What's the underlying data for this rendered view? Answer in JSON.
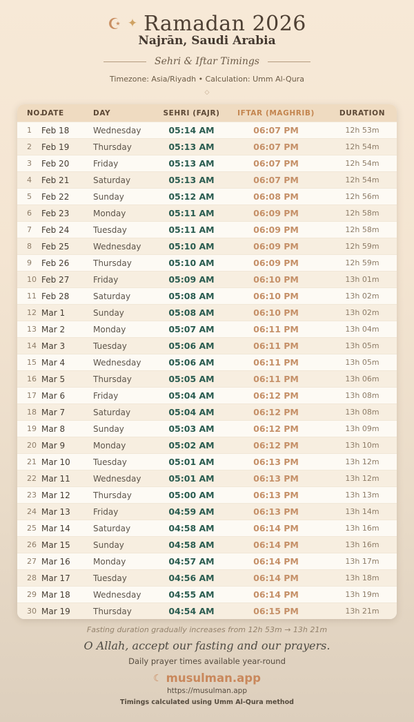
{
  "header": {
    "crescent_icon": "☪",
    "sparkle_icon": "✦",
    "title": "Ramadan 2026",
    "location": "Najrān, Saudi Arabia",
    "tagline": "Sehri & Iftar Timings",
    "meta": "Timezone: Asia/Riyadh • Calculation: Umm Al-Qura",
    "ornament": "◇"
  },
  "table": {
    "columns": [
      "NO.",
      "DATE",
      "DAY",
      "SEHRI (FAJR)",
      "IFTAR (MAGHRIB)",
      "DURATION"
    ],
    "rows": [
      [
        "1",
        "Feb 18",
        "Wednesday",
        "05:14 AM",
        "06:07 PM",
        "12h 53m"
      ],
      [
        "2",
        "Feb 19",
        "Thursday",
        "05:13 AM",
        "06:07 PM",
        "12h 54m"
      ],
      [
        "3",
        "Feb 20",
        "Friday",
        "05:13 AM",
        "06:07 PM",
        "12h 54m"
      ],
      [
        "4",
        "Feb 21",
        "Saturday",
        "05:13 AM",
        "06:07 PM",
        "12h 54m"
      ],
      [
        "5",
        "Feb 22",
        "Sunday",
        "05:12 AM",
        "06:08 PM",
        "12h 56m"
      ],
      [
        "6",
        "Feb 23",
        "Monday",
        "05:11 AM",
        "06:09 PM",
        "12h 58m"
      ],
      [
        "7",
        "Feb 24",
        "Tuesday",
        "05:11 AM",
        "06:09 PM",
        "12h 58m"
      ],
      [
        "8",
        "Feb 25",
        "Wednesday",
        "05:10 AM",
        "06:09 PM",
        "12h 59m"
      ],
      [
        "9",
        "Feb 26",
        "Thursday",
        "05:10 AM",
        "06:09 PM",
        "12h 59m"
      ],
      [
        "10",
        "Feb 27",
        "Friday",
        "05:09 AM",
        "06:10 PM",
        "13h 01m"
      ],
      [
        "11",
        "Feb 28",
        "Saturday",
        "05:08 AM",
        "06:10 PM",
        "13h 02m"
      ],
      [
        "12",
        "Mar 1",
        "Sunday",
        "05:08 AM",
        "06:10 PM",
        "13h 02m"
      ],
      [
        "13",
        "Mar 2",
        "Monday",
        "05:07 AM",
        "06:11 PM",
        "13h 04m"
      ],
      [
        "14",
        "Mar 3",
        "Tuesday",
        "05:06 AM",
        "06:11 PM",
        "13h 05m"
      ],
      [
        "15",
        "Mar 4",
        "Wednesday",
        "05:06 AM",
        "06:11 PM",
        "13h 05m"
      ],
      [
        "16",
        "Mar 5",
        "Thursday",
        "05:05 AM",
        "06:11 PM",
        "13h 06m"
      ],
      [
        "17",
        "Mar 6",
        "Friday",
        "05:04 AM",
        "06:12 PM",
        "13h 08m"
      ],
      [
        "18",
        "Mar 7",
        "Saturday",
        "05:04 AM",
        "06:12 PM",
        "13h 08m"
      ],
      [
        "19",
        "Mar 8",
        "Sunday",
        "05:03 AM",
        "06:12 PM",
        "13h 09m"
      ],
      [
        "20",
        "Mar 9",
        "Monday",
        "05:02 AM",
        "06:12 PM",
        "13h 10m"
      ],
      [
        "21",
        "Mar 10",
        "Tuesday",
        "05:01 AM",
        "06:13 PM",
        "13h 12m"
      ],
      [
        "22",
        "Mar 11",
        "Wednesday",
        "05:01 AM",
        "06:13 PM",
        "13h 12m"
      ],
      [
        "23",
        "Mar 12",
        "Thursday",
        "05:00 AM",
        "06:13 PM",
        "13h 13m"
      ],
      [
        "24",
        "Mar 13",
        "Friday",
        "04:59 AM",
        "06:13 PM",
        "13h 14m"
      ],
      [
        "25",
        "Mar 14",
        "Saturday",
        "04:58 AM",
        "06:14 PM",
        "13h 16m"
      ],
      [
        "26",
        "Mar 15",
        "Sunday",
        "04:58 AM",
        "06:14 PM",
        "13h 16m"
      ],
      [
        "27",
        "Mar 16",
        "Monday",
        "04:57 AM",
        "06:14 PM",
        "13h 17m"
      ],
      [
        "28",
        "Mar 17",
        "Tuesday",
        "04:56 AM",
        "06:14 PM",
        "13h 18m"
      ],
      [
        "29",
        "Mar 18",
        "Wednesday",
        "04:55 AM",
        "06:14 PM",
        "13h 19m"
      ],
      [
        "30",
        "Mar 19",
        "Thursday",
        "04:54 AM",
        "06:15 PM",
        "13h 21m"
      ]
    ]
  },
  "footer": {
    "fasting_note": "Fasting duration gradually increases from 12h 53m → 13h 21m",
    "dua": "O Allah, accept our fasting and our prayers.",
    "availability": "Daily prayer times available year-round",
    "brand_icon": "☾",
    "brand": "musulman.app",
    "url": "https://musulman.app",
    "method_note": "Timings calculated using Umm Al-Qura method"
  },
  "colors": {
    "sehri_time": "#2a5c50",
    "iftar_time": "#c59068",
    "iftar_header": "#c3854f",
    "brand_accent": "#c9885c",
    "header_band": "#efdbc1",
    "background_top": "#f7e9d7",
    "background_bottom": "#ddcfbd"
  }
}
